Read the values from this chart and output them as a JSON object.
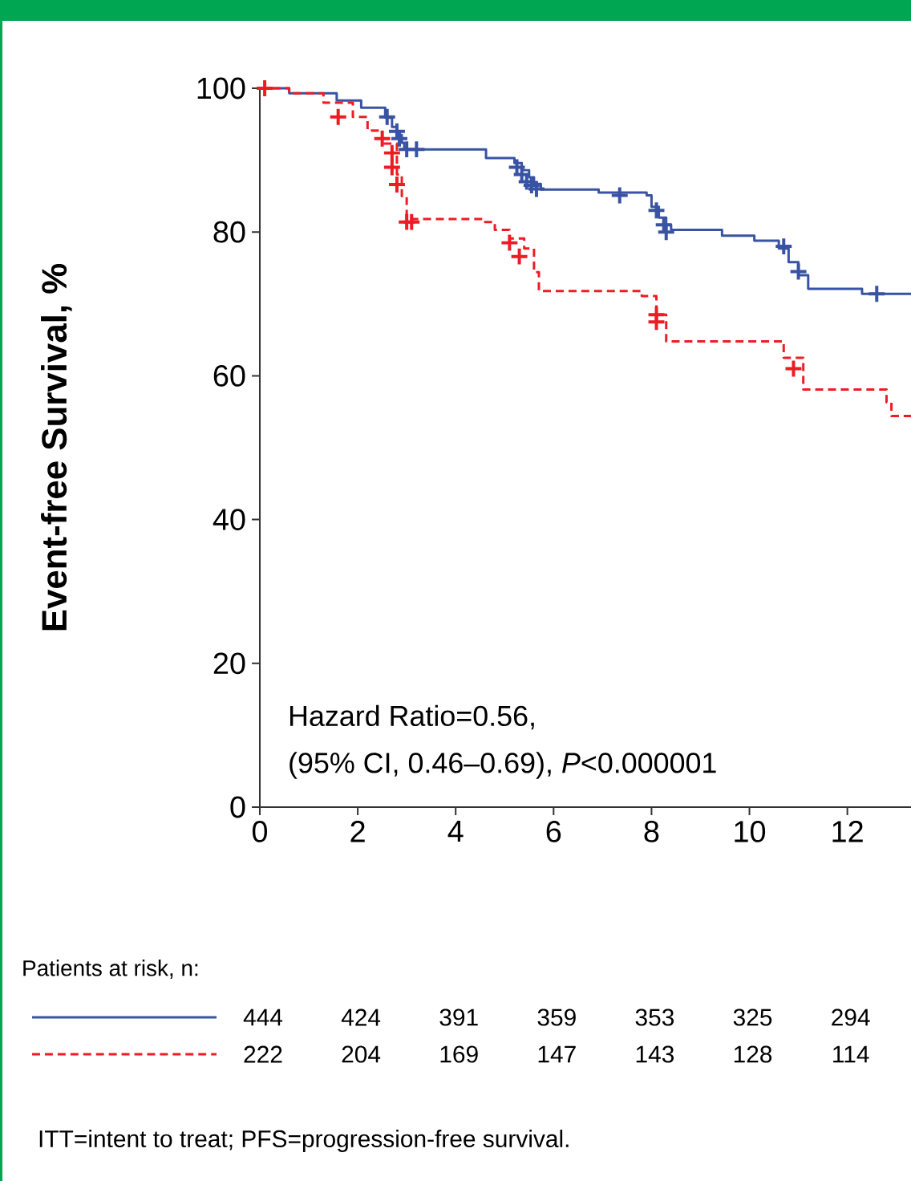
{
  "chart_data": {
    "type": "step",
    "ylabel": "Event-free Survival, %",
    "xlim": [
      0,
      13.3
    ],
    "ylim": [
      0,
      100
    ],
    "xticks": [
      0,
      2,
      4,
      6,
      8,
      10,
      12
    ],
    "yticks": [
      0,
      20,
      40,
      60,
      80,
      100
    ],
    "grid": false,
    "series": [
      {
        "color": "#3953a4",
        "line_style": "solid",
        "x": [
          0,
          0.6,
          1.57,
          2.07,
          2.56,
          2.7,
          2.8,
          2.9,
          2.95,
          4.62,
          5.2,
          5.35,
          5.5,
          5.6,
          5.74,
          6.92,
          7.9,
          8.0,
          8.15,
          8.3,
          8.4,
          9.44,
          10.1,
          10.6,
          10.8,
          11.0,
          11.2,
          12.3,
          13.3
        ],
        "values": [
          100,
          99.3,
          98.3,
          97.3,
          95.9,
          94.6,
          93.5,
          92.4,
          91.5,
          90.3,
          89.6,
          88.6,
          87.6,
          86.7,
          85.9,
          85.5,
          85.1,
          83.5,
          82,
          81,
          80.3,
          79.5,
          78.8,
          77.7,
          75.8,
          74,
          72.1,
          71.4,
          71.3
        ]
      },
      {
        "color": "#ed1c24",
        "line_style": "dashed",
        "x": [
          0,
          0.6,
          1.3,
          1.9,
          2.2,
          2.5,
          2.8,
          2.9,
          3.0,
          4.6,
          4.8,
          5.1,
          5.4,
          5.6,
          5.7,
          7.8,
          8.1,
          8.3,
          10.7,
          11.1,
          12.8,
          12.9,
          13.3
        ],
        "values": [
          100,
          99.3,
          98,
          96,
          94.1,
          92.3,
          88,
          85,
          81.8,
          81.4,
          80.3,
          79.1,
          77.7,
          74.4,
          71.8,
          71.1,
          68.5,
          64.8,
          62.5,
          58.1,
          56.3,
          54.4,
          54.2
        ]
      },
      {
        "type": "scatter",
        "color": "#3953a4",
        "marker": "cross",
        "x": [
          2.6,
          2.8,
          2.85,
          3.0,
          3.2,
          5.25,
          5.35,
          5.45,
          5.55,
          5.65,
          7.35,
          8.1,
          8.25,
          8.3,
          10.7,
          11.0,
          12.6
        ],
        "values": [
          96,
          94,
          93,
          91.5,
          91.5,
          89,
          88,
          87,
          86.5,
          86,
          85.1,
          83,
          81,
          80,
          78,
          74.5,
          71.4
        ]
      },
      {
        "type": "scatter",
        "color": "#ed1c24",
        "marker": "cross",
        "x": [
          0.1,
          1.6,
          2.5,
          2.7,
          2.7,
          2.8,
          3.0,
          3.1,
          5.1,
          5.3,
          8.1,
          8.1,
          10.9
        ],
        "values": [
          100,
          96,
          93,
          91,
          89,
          86.6,
          81.4,
          81.4,
          78.5,
          76.6,
          68.5,
          67.5,
          61
        ]
      }
    ],
    "annotations": [
      "Hazard Ratio=0.56,",
      "(95% CI, 0.46–0.69), *P*<0.000001",
      "Patients at risk, n:",
      "444",
      "424",
      "391",
      "359",
      "353",
      "325",
      "294",
      "222",
      "204",
      "169",
      "147",
      "143",
      "128",
      "114",
      "ITT=intent to treat; PFS=progression-free survival."
    ]
  }
}
